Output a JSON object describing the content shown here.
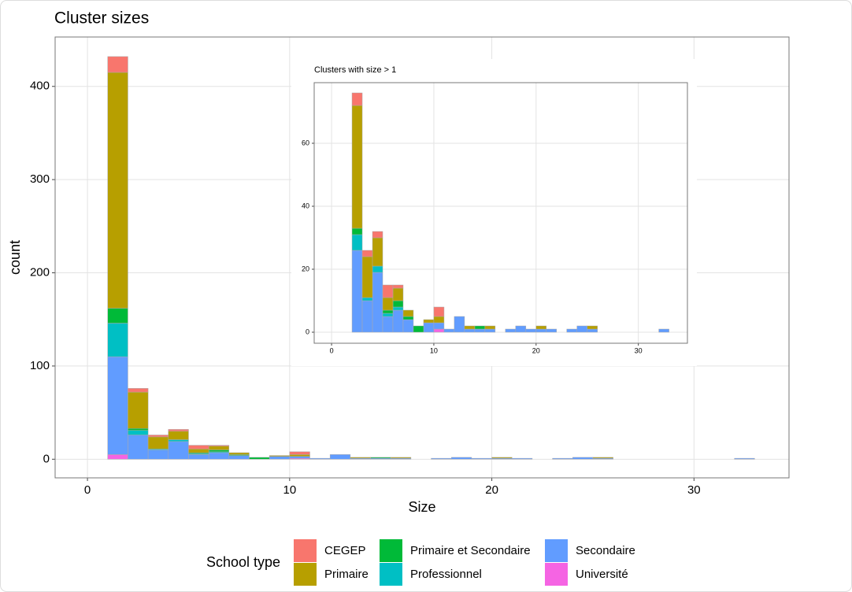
{
  "chart_data": [
    {
      "type": "histogram",
      "title": "Cluster sizes",
      "xlabel": "Size",
      "ylabel": "count",
      "bins": [
        0,
        1,
        2,
        3,
        4,
        5,
        6,
        7,
        8,
        9,
        10,
        11,
        12,
        13,
        14,
        15,
        16,
        17,
        18,
        19,
        20,
        21,
        22,
        23,
        24,
        25,
        26,
        27,
        28,
        29,
        30,
        31,
        32,
        33
      ],
      "series": [
        {
          "name": "Université",
          "color": "#F564E3",
          "values": [
            0,
            5,
            0,
            0,
            0,
            0,
            0,
            0,
            0,
            0,
            1,
            0,
            0,
            0,
            0,
            0,
            0,
            0,
            0,
            0,
            0,
            0,
            0,
            0,
            0,
            0,
            0,
            0,
            0,
            0,
            0,
            0,
            0
          ]
        },
        {
          "name": "Secondaire",
          "color": "#619CFF",
          "values": [
            0,
            105,
            26,
            10,
            19,
            5,
            7,
            4,
            0,
            3,
            2,
            1,
            5,
            1,
            1,
            1,
            0,
            1,
            2,
            1,
            1,
            1,
            0,
            1,
            2,
            1,
            0,
            0,
            0,
            0,
            0,
            0,
            1
          ]
        },
        {
          "name": "Professionnel",
          "color": "#00BFC4",
          "values": [
            0,
            36,
            5,
            1,
            2,
            1,
            1,
            0,
            0,
            0,
            0,
            0,
            0,
            0,
            0,
            0,
            0,
            0,
            0,
            0,
            0,
            0,
            0,
            0,
            0,
            0,
            0,
            0,
            0,
            0,
            0,
            0,
            0
          ]
        },
        {
          "name": "Primaire et Secondaire",
          "color": "#00BA38",
          "values": [
            0,
            16,
            2,
            0,
            0,
            1,
            2,
            1,
            2,
            0,
            0,
            0,
            0,
            0,
            1,
            0,
            0,
            0,
            0,
            0,
            0,
            0,
            0,
            0,
            0,
            0,
            0,
            0,
            0,
            0,
            0,
            0,
            0
          ]
        },
        {
          "name": "Primaire",
          "color": "#B79F00",
          "values": [
            0,
            253,
            39,
            13,
            9,
            4,
            4,
            2,
            0,
            1,
            2,
            0,
            0,
            1,
            0,
            1,
            0,
            0,
            0,
            0,
            1,
            0,
            0,
            0,
            0,
            1,
            0,
            0,
            0,
            0,
            0,
            0,
            0
          ]
        },
        {
          "name": "CEGEP",
          "color": "#F8766D",
          "values": [
            0,
            17,
            4,
            2,
            2,
            4,
            1,
            0,
            0,
            0,
            3,
            0,
            0,
            0,
            0,
            0,
            0,
            0,
            0,
            0,
            0,
            0,
            0,
            0,
            0,
            0,
            0,
            0,
            0,
            0,
            0,
            0,
            0
          ]
        }
      ],
      "xlim": [
        -1.6,
        34.7
      ],
      "xticks": [
        0,
        10,
        20,
        30
      ],
      "ylim": [
        -20,
        453
      ],
      "yticks": [
        0,
        100,
        200,
        300,
        400
      ],
      "grid": true,
      "legend_title": "School type",
      "legend_position": "bottom"
    },
    {
      "type": "histogram",
      "title": "Clusters with size > 1",
      "bins": [
        0,
        1,
        2,
        3,
        4,
        5,
        6,
        7,
        8,
        9,
        10,
        11,
        12,
        13,
        14,
        15,
        16,
        17,
        18,
        19,
        20,
        21,
        22,
        23,
        24,
        25,
        26,
        27,
        28,
        29,
        30,
        31,
        32,
        33
      ],
      "series": [
        {
          "values": [
            0,
            0,
            0,
            0,
            0,
            0,
            0,
            0,
            0,
            0,
            1,
            0,
            0,
            0,
            0,
            0,
            0,
            0,
            0,
            0,
            0,
            0,
            0,
            0,
            0,
            0,
            0,
            0,
            0,
            0,
            0,
            0,
            0
          ]
        },
        {
          "values": [
            0,
            0,
            26,
            10,
            19,
            5,
            7,
            4,
            0,
            3,
            2,
            1,
            5,
            1,
            1,
            1,
            0,
            1,
            2,
            1,
            1,
            1,
            0,
            1,
            2,
            1,
            0,
            0,
            0,
            0,
            0,
            0,
            1
          ]
        },
        {
          "values": [
            0,
            0,
            5,
            1,
            2,
            1,
            1,
            0,
            0,
            0,
            0,
            0,
            0,
            0,
            0,
            0,
            0,
            0,
            0,
            0,
            0,
            0,
            0,
            0,
            0,
            0,
            0,
            0,
            0,
            0,
            0,
            0,
            0
          ]
        },
        {
          "values": [
            0,
            0,
            2,
            0,
            0,
            1,
            2,
            1,
            2,
            0,
            0,
            0,
            0,
            0,
            1,
            0,
            0,
            0,
            0,
            0,
            0,
            0,
            0,
            0,
            0,
            0,
            0,
            0,
            0,
            0,
            0,
            0,
            0
          ]
        },
        {
          "values": [
            0,
            0,
            39,
            13,
            9,
            4,
            4,
            2,
            0,
            1,
            2,
            0,
            0,
            1,
            0,
            1,
            0,
            0,
            0,
            0,
            1,
            0,
            0,
            0,
            0,
            1,
            0,
            0,
            0,
            0,
            0,
            0,
            0
          ]
        },
        {
          "values": [
            0,
            0,
            4,
            2,
            2,
            4,
            1,
            0,
            0,
            0,
            3,
            0,
            0,
            0,
            0,
            0,
            0,
            0,
            0,
            0,
            0,
            0,
            0,
            0,
            0,
            0,
            0,
            0,
            0,
            0,
            0,
            0,
            0
          ]
        }
      ],
      "xlim": [
        -1.7,
        34.8
      ],
      "xticks": [
        0,
        10,
        20,
        30
      ],
      "ylim": [
        -3.5,
        79.25
      ],
      "yticks": [
        0,
        20,
        40,
        60
      ],
      "grid": true
    }
  ]
}
